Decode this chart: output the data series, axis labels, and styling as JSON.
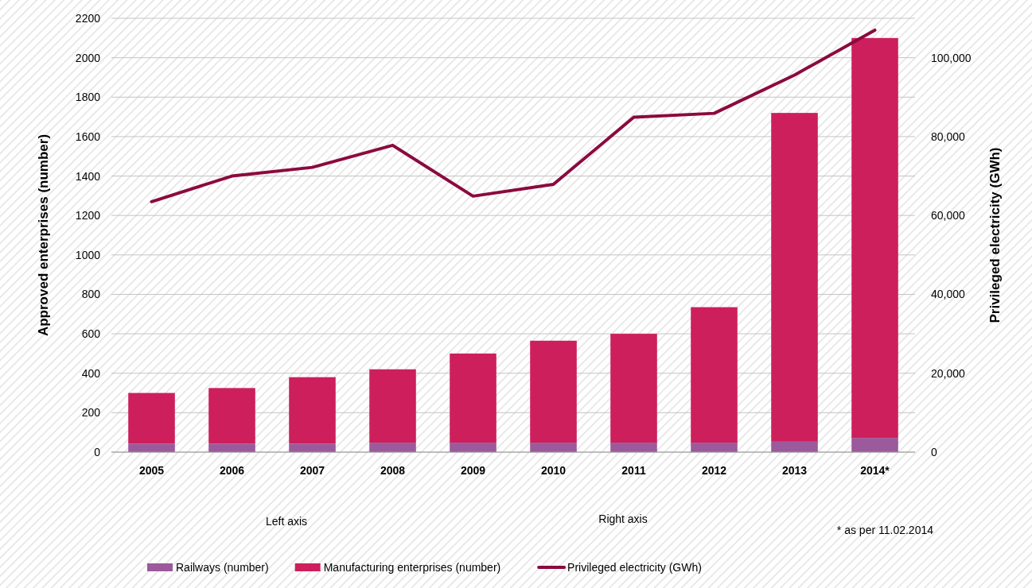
{
  "chart_data": {
    "type": "bar",
    "stacked": true,
    "categories": [
      "2005",
      "2006",
      "2007",
      "2008",
      "2009",
      "2010",
      "2011",
      "2012",
      "2013",
      "2014*"
    ],
    "series": [
      {
        "name": "Railways (number)",
        "color": "#9b5a9b",
        "values": [
          43,
          43,
          43,
          48,
          48,
          48,
          48,
          48,
          53,
          72
        ]
      },
      {
        "name": "Manufacturing enterprises (number)",
        "color": "#cd1f5c",
        "values": [
          257,
          282,
          337,
          372,
          452,
          517,
          552,
          687,
          1667,
          2028
        ]
      },
      {
        "name": "Privileged electricity (GWh)",
        "type": "line",
        "axis": "y2",
        "color": "#8b0a3e",
        "values": [
          63500,
          70000,
          72200,
          77800,
          64900,
          67900,
          84900,
          85900,
          95600,
          107000
        ]
      }
    ],
    "ylabel": "Approved enterprises (number)",
    "y2label": "Privileged electricity (GWh)",
    "ylim": [
      0,
      2200
    ],
    "yticks": [
      0,
      200,
      400,
      600,
      800,
      1000,
      1200,
      1400,
      1600,
      1800,
      2000,
      2200
    ],
    "y2lim": [
      0,
      110000
    ],
    "y2ticks": [
      0,
      {
        "value": 20000,
        "label": "20,000"
      },
      {
        "value": 40000,
        "label": "40,000"
      },
      {
        "value": 60000,
        "label": "60,000"
      },
      {
        "value": 80000,
        "label": "80,000"
      },
      {
        "value": 100000,
        "label": "100,000"
      }
    ],
    "grid": "y",
    "legend": "bottom",
    "marker": "none",
    "line_style": "solid",
    "annotations": [
      "Left axis",
      "Right axis",
      "* as per  11.02.2014"
    ]
  }
}
